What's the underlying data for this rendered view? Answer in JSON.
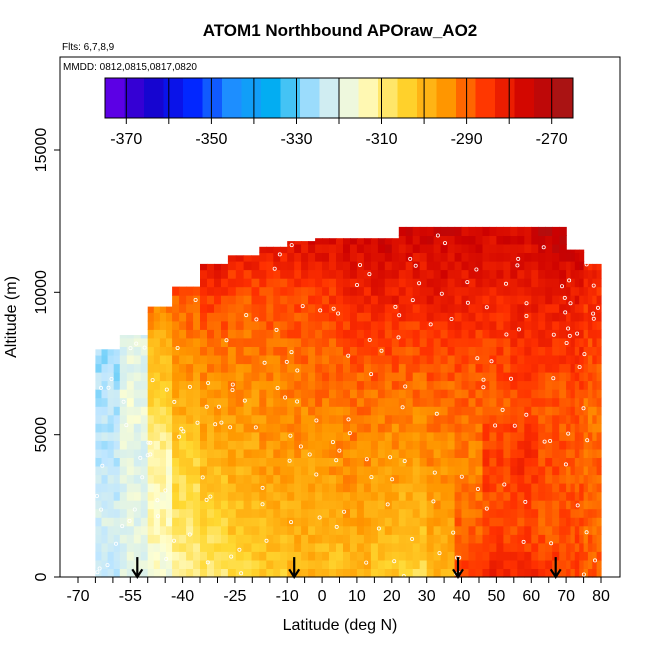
{
  "chart_data": {
    "type": "heatmap",
    "title": "ATOM1 Northbound APOraw_AO2",
    "flights_label": "Flts: 6,7,8,9",
    "dates_label": "MMDD: 0812,0815,0817,0820",
    "xlabel": "Latitude (deg N)",
    "ylabel": "Altitude (m)",
    "xlim": [
      -70,
      83
    ],
    "ylim": [
      0,
      18000
    ],
    "x_ticks": [
      -70,
      -55,
      -40,
      -25,
      -10,
      0,
      10,
      20,
      30,
      40,
      50,
      60,
      70,
      80
    ],
    "y_ticks": [
      0,
      5000,
      10000,
      15000
    ],
    "colorbar": {
      "min": -375,
      "max": -265,
      "ticks": [
        -370,
        -350,
        -330,
        -310,
        -290,
        -270
      ],
      "colors": [
        "#7000ee",
        "#1a00c8",
        "#0020ff",
        "#1e90ff",
        "#00b0f0",
        "#bfe6ff",
        "#ffffd0",
        "#ffd830",
        "#ff9800",
        "#ff3000",
        "#cc0000",
        "#a01818"
      ]
    },
    "x_label_offset": 0,
    "grid": false,
    "columns": [
      {
        "lat_min": -65,
        "lat_max": -58,
        "alt_max": 8000,
        "profile": [
          [
            0,
            -323
          ],
          [
            2000,
            -322
          ],
          [
            4000,
            -324
          ],
          [
            6000,
            -325
          ],
          [
            8000,
            -327
          ]
        ]
      },
      {
        "lat_min": -58,
        "lat_max": -50,
        "alt_max": 8500,
        "profile": [
          [
            0,
            -320
          ],
          [
            2000,
            -319
          ],
          [
            4000,
            -320
          ],
          [
            6000,
            -318
          ],
          [
            8500,
            -320
          ]
        ]
      },
      {
        "lat_min": -50,
        "lat_max": -43,
        "alt_max": 9500,
        "profile": [
          [
            0,
            -316
          ],
          [
            2000,
            -313
          ],
          [
            4000,
            -314
          ],
          [
            6000,
            -305
          ],
          [
            8000,
            -300
          ],
          [
            9500,
            -292
          ]
        ]
      },
      {
        "lat_min": -43,
        "lat_max": -35,
        "alt_max": 10200,
        "profile": [
          [
            0,
            -312
          ],
          [
            2000,
            -308
          ],
          [
            4000,
            -305
          ],
          [
            6000,
            -298
          ],
          [
            8000,
            -293
          ],
          [
            10200,
            -288
          ]
        ]
      },
      {
        "lat_min": -35,
        "lat_max": -27,
        "alt_max": 11000,
        "profile": [
          [
            0,
            -309
          ],
          [
            2000,
            -305
          ],
          [
            4000,
            -300
          ],
          [
            6000,
            -296
          ],
          [
            8000,
            -292
          ],
          [
            10000,
            -285
          ],
          [
            11000,
            -278
          ]
        ]
      },
      {
        "lat_min": -27,
        "lat_max": -18,
        "alt_max": 11300,
        "profile": [
          [
            0,
            -305
          ],
          [
            2000,
            -302
          ],
          [
            4000,
            -298
          ],
          [
            6000,
            -295
          ],
          [
            8000,
            -292
          ],
          [
            10000,
            -288
          ],
          [
            11300,
            -280
          ]
        ]
      },
      {
        "lat_min": -18,
        "lat_max": -10,
        "alt_max": 11600,
        "profile": [
          [
            0,
            -303
          ],
          [
            2000,
            -300
          ],
          [
            4000,
            -296
          ],
          [
            6000,
            -294
          ],
          [
            8000,
            -291
          ],
          [
            10000,
            -287
          ],
          [
            11600,
            -280
          ]
        ]
      },
      {
        "lat_min": -10,
        "lat_max": -2,
        "alt_max": 11800,
        "profile": [
          [
            0,
            -300
          ],
          [
            2000,
            -298
          ],
          [
            4000,
            -296
          ],
          [
            6000,
            -293
          ],
          [
            8000,
            -290
          ],
          [
            10000,
            -286
          ],
          [
            11800,
            -278
          ]
        ]
      },
      {
        "lat_min": -2,
        "lat_max": 6,
        "alt_max": 11900,
        "profile": [
          [
            0,
            -302
          ],
          [
            2000,
            -299
          ],
          [
            4000,
            -295
          ],
          [
            6000,
            -292
          ],
          [
            8000,
            -289
          ],
          [
            10000,
            -285
          ],
          [
            11900,
            -277
          ]
        ]
      },
      {
        "lat_min": 6,
        "lat_max": 14,
        "alt_max": 11900,
        "profile": [
          [
            0,
            -300
          ],
          [
            2000,
            -297
          ],
          [
            4000,
            -294
          ],
          [
            6000,
            -291
          ],
          [
            8000,
            -288
          ],
          [
            10000,
            -282
          ],
          [
            11900,
            -276
          ]
        ]
      },
      {
        "lat_min": 14,
        "lat_max": 22,
        "alt_max": 11900,
        "profile": [
          [
            0,
            -303
          ],
          [
            2000,
            -298
          ],
          [
            4000,
            -295
          ],
          [
            6000,
            -292
          ],
          [
            8000,
            -287
          ],
          [
            10000,
            -281
          ],
          [
            11900,
            -275
          ]
        ]
      },
      {
        "lat_min": 22,
        "lat_max": 30,
        "alt_max": 12300,
        "profile": [
          [
            0,
            -306
          ],
          [
            2000,
            -300
          ],
          [
            4000,
            -296
          ],
          [
            6000,
            -292
          ],
          [
            8000,
            -288
          ],
          [
            10000,
            -282
          ],
          [
            12300,
            -276
          ]
        ]
      },
      {
        "lat_min": 30,
        "lat_max": 38,
        "alt_max": 12300,
        "profile": [
          [
            0,
            -300
          ],
          [
            2000,
            -297
          ],
          [
            4000,
            -294
          ],
          [
            6000,
            -291
          ],
          [
            8000,
            -287
          ],
          [
            10000,
            -280
          ],
          [
            12300,
            -275
          ]
        ]
      },
      {
        "lat_min": 38,
        "lat_max": 46,
        "alt_max": 12300,
        "profile": [
          [
            0,
            -286
          ],
          [
            2000,
            -290
          ],
          [
            4000,
            -293
          ],
          [
            6000,
            -290
          ],
          [
            8000,
            -287
          ],
          [
            10000,
            -281
          ],
          [
            12300,
            -276
          ]
        ]
      },
      {
        "lat_min": 46,
        "lat_max": 54,
        "alt_max": 12300,
        "profile": [
          [
            0,
            -282
          ],
          [
            2000,
            -288
          ],
          [
            4000,
            -286
          ],
          [
            6000,
            -289
          ],
          [
            8000,
            -286
          ],
          [
            10000,
            -282
          ],
          [
            12300,
            -276
          ]
        ]
      },
      {
        "lat_min": 54,
        "lat_max": 62,
        "alt_max": 12300,
        "profile": [
          [
            0,
            -283
          ],
          [
            2000,
            -288
          ],
          [
            4000,
            -284
          ],
          [
            6000,
            -288
          ],
          [
            8000,
            -284
          ],
          [
            10000,
            -281
          ],
          [
            12300,
            -276
          ]
        ]
      },
      {
        "lat_min": 62,
        "lat_max": 70,
        "alt_max": 12300,
        "profile": [
          [
            0,
            -285
          ],
          [
            2000,
            -289
          ],
          [
            4000,
            -287
          ],
          [
            6000,
            -289
          ],
          [
            8000,
            -285
          ],
          [
            10000,
            -280
          ],
          [
            12300,
            -272
          ]
        ]
      },
      {
        "lat_min": 70,
        "lat_max": 75,
        "alt_max": 11500,
        "profile": [
          [
            0,
            -287
          ],
          [
            2000,
            -288
          ],
          [
            4000,
            -289
          ],
          [
            6000,
            -288
          ],
          [
            8000,
            -284
          ],
          [
            10000,
            -280
          ],
          [
            11500,
            -275
          ]
        ]
      },
      {
        "lat_min": 75,
        "lat_max": 80,
        "alt_max": 11000,
        "profile": [
          [
            0,
            -289
          ],
          [
            2000,
            -290
          ],
          [
            4000,
            -290
          ],
          [
            6000,
            -291
          ],
          [
            8000,
            -287
          ],
          [
            11000,
            -282
          ]
        ]
      }
    ],
    "arrows_lat": [
      -53,
      -8,
      39,
      67
    ]
  }
}
